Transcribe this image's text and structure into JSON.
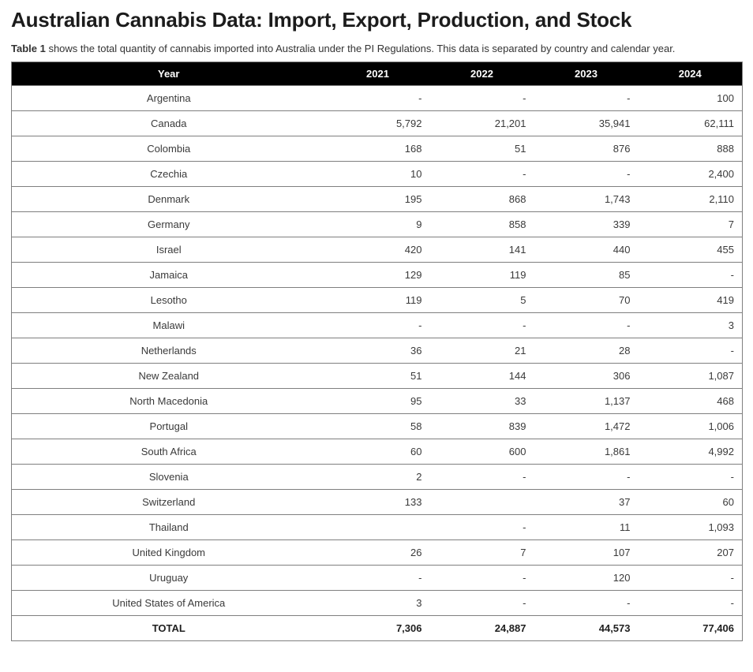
{
  "page": {
    "title": "Australian Cannabis Data: Import, Export, Production, and Stock",
    "caption_bold": "Table 1",
    "caption_rest": " shows the total quantity of cannabis imported into Australia under the PI Regulations. This data is separated by country and calendar year."
  },
  "colors": {
    "header_bg": "#000000",
    "header_text": "#ffffff",
    "border": "#7f7f7f",
    "body_text": "#3a3a3a",
    "title_text": "#1c1c1c"
  },
  "chart_data": {
    "type": "table",
    "title": "Australian Cannabis Data: Import, Export, Production, and Stock",
    "columns": [
      "Year",
      "2021",
      "2022",
      "2023",
      "2024"
    ],
    "rows": [
      [
        "Argentina",
        "-",
        "-",
        "-",
        "100"
      ],
      [
        "Canada",
        "5,792",
        "21,201",
        "35,941",
        "62,111"
      ],
      [
        "Colombia",
        "168",
        "51",
        "876",
        "888"
      ],
      [
        "Czechia",
        "10",
        "-",
        "-",
        "2,400"
      ],
      [
        "Denmark",
        "195",
        "868",
        "1,743",
        "2,110"
      ],
      [
        "Germany",
        "9",
        "858",
        "339",
        "7"
      ],
      [
        "Israel",
        "420",
        "141",
        "440",
        "455"
      ],
      [
        "Jamaica",
        "129",
        "119",
        "85",
        "-"
      ],
      [
        "Lesotho",
        "119",
        "5",
        "70",
        "419"
      ],
      [
        "Malawi",
        "-",
        "-",
        "-",
        "3"
      ],
      [
        "Netherlands",
        "36",
        "21",
        "28",
        "-"
      ],
      [
        "New Zealand",
        "51",
        "144",
        "306",
        "1,087"
      ],
      [
        "North Macedonia",
        "95",
        "33",
        "1,137",
        "468"
      ],
      [
        "Portugal",
        "58",
        "839",
        "1,472",
        "1,006"
      ],
      [
        "South Africa",
        "60",
        "600",
        "1,861",
        "4,992"
      ],
      [
        "Slovenia",
        "2",
        "-",
        "-",
        "-"
      ],
      [
        "Switzerland",
        "133",
        "",
        "37",
        "60"
      ],
      [
        "Thailand",
        "",
        "-",
        "11",
        "1,093"
      ],
      [
        "United Kingdom",
        "26",
        "7",
        "107",
        "207"
      ],
      [
        "Uruguay",
        "-",
        "-",
        "120",
        "-"
      ],
      [
        "United States of America",
        "3",
        "-",
        "-",
        "-"
      ]
    ],
    "total_row": [
      "TOTAL",
      "7,306",
      "24,887",
      "44,573",
      "77,406"
    ]
  }
}
